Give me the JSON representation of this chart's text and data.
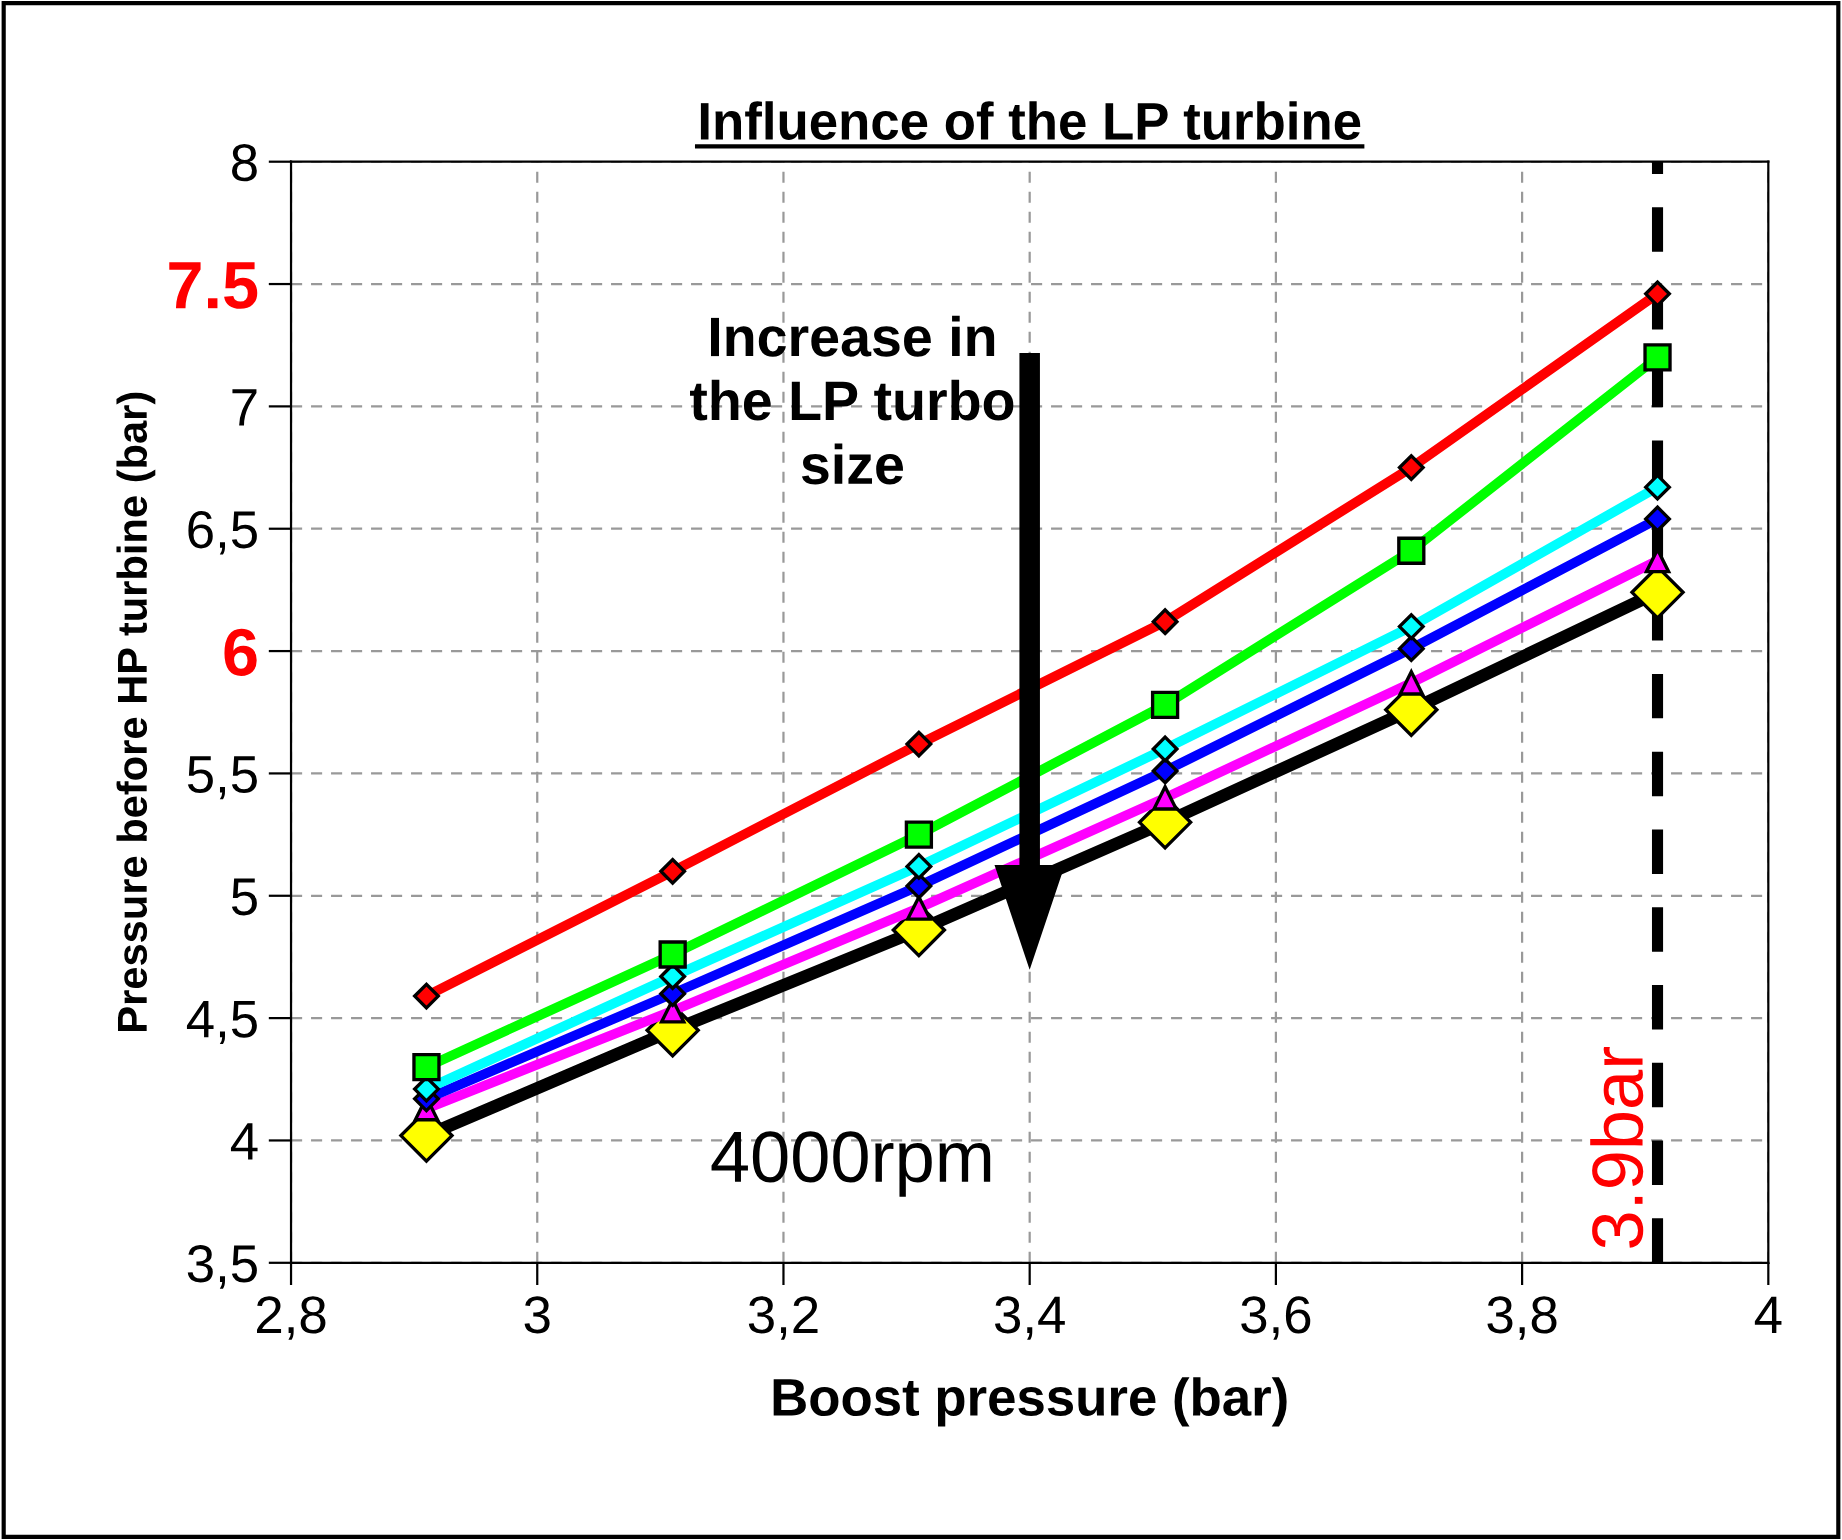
{
  "chart_data": {
    "type": "line",
    "title": "Influence of the LP turbine",
    "xlabel": "Boost pressure (bar)",
    "ylabel": "Pressure before HP turbine (bar)",
    "x": [
      2.91,
      3.11,
      3.31,
      3.51,
      3.71,
      3.91
    ],
    "series": [
      {
        "color": "#ff0000",
        "marker": "diamond",
        "values": [
          4.59,
          5.1,
          5.62,
          6.12,
          6.75,
          7.46
        ]
      },
      {
        "color": "#00ff00",
        "marker": "square",
        "values": [
          4.3,
          4.76,
          5.25,
          5.78,
          6.41,
          7.2
        ]
      },
      {
        "color": "#00ffff",
        "marker": "diamond",
        "values": [
          4.21,
          4.67,
          5.12,
          5.6,
          6.1,
          6.67
        ]
      },
      {
        "color": "#0000ff",
        "marker": "diamond",
        "values": [
          4.17,
          4.6,
          5.04,
          5.51,
          6.01,
          6.54
        ]
      },
      {
        "color": "#ff00ff",
        "marker": "triangle",
        "values": [
          4.13,
          4.53,
          4.95,
          5.4,
          5.87,
          6.37
        ]
      },
      {
        "color": "#000000",
        "marker": "diamond",
        "colors": [
          "#ffff00",
          "#ffff00",
          "#ffff00",
          "#ffff00",
          "#ffff00",
          "#ffff00"
        ],
        "values": [
          4.02,
          4.45,
          4.86,
          5.3,
          5.76,
          6.24
        ]
      }
    ],
    "xlim": [
      2.8,
      4
    ],
    "ylim": [
      3.5,
      8
    ],
    "xticks": [
      {
        "value": 2.8,
        "label": "2,8"
      },
      3,
      {
        "value": 3.2,
        "label": "3,2"
      },
      {
        "value": 3.4,
        "label": "3,4"
      },
      {
        "value": 3.6,
        "label": "3,6"
      },
      {
        "value": 3.8,
        "label": "3,8"
      },
      4
    ],
    "yticks": [
      {
        "value": 3.5,
        "label": "3,5"
      },
      4,
      {
        "value": 4.5,
        "label": "4,5"
      },
      5,
      {
        "value": 5.5,
        "label": "5,5"
      },
      6,
      {
        "value": 6.5,
        "label": "6,5"
      },
      7,
      {
        "value": 7.5,
        "label": "7.5"
      },
      8
    ],
    "ref_lines": [
      {
        "axis": "x",
        "value": 3.91,
        "label": "3.9bar",
        "color": "#000000",
        "line_style": "dashed"
      }
    ],
    "annotations": [
      "Increase in\nthe LP turbo\nsize",
      "4000rpm"
    ],
    "grid": true
  }
}
